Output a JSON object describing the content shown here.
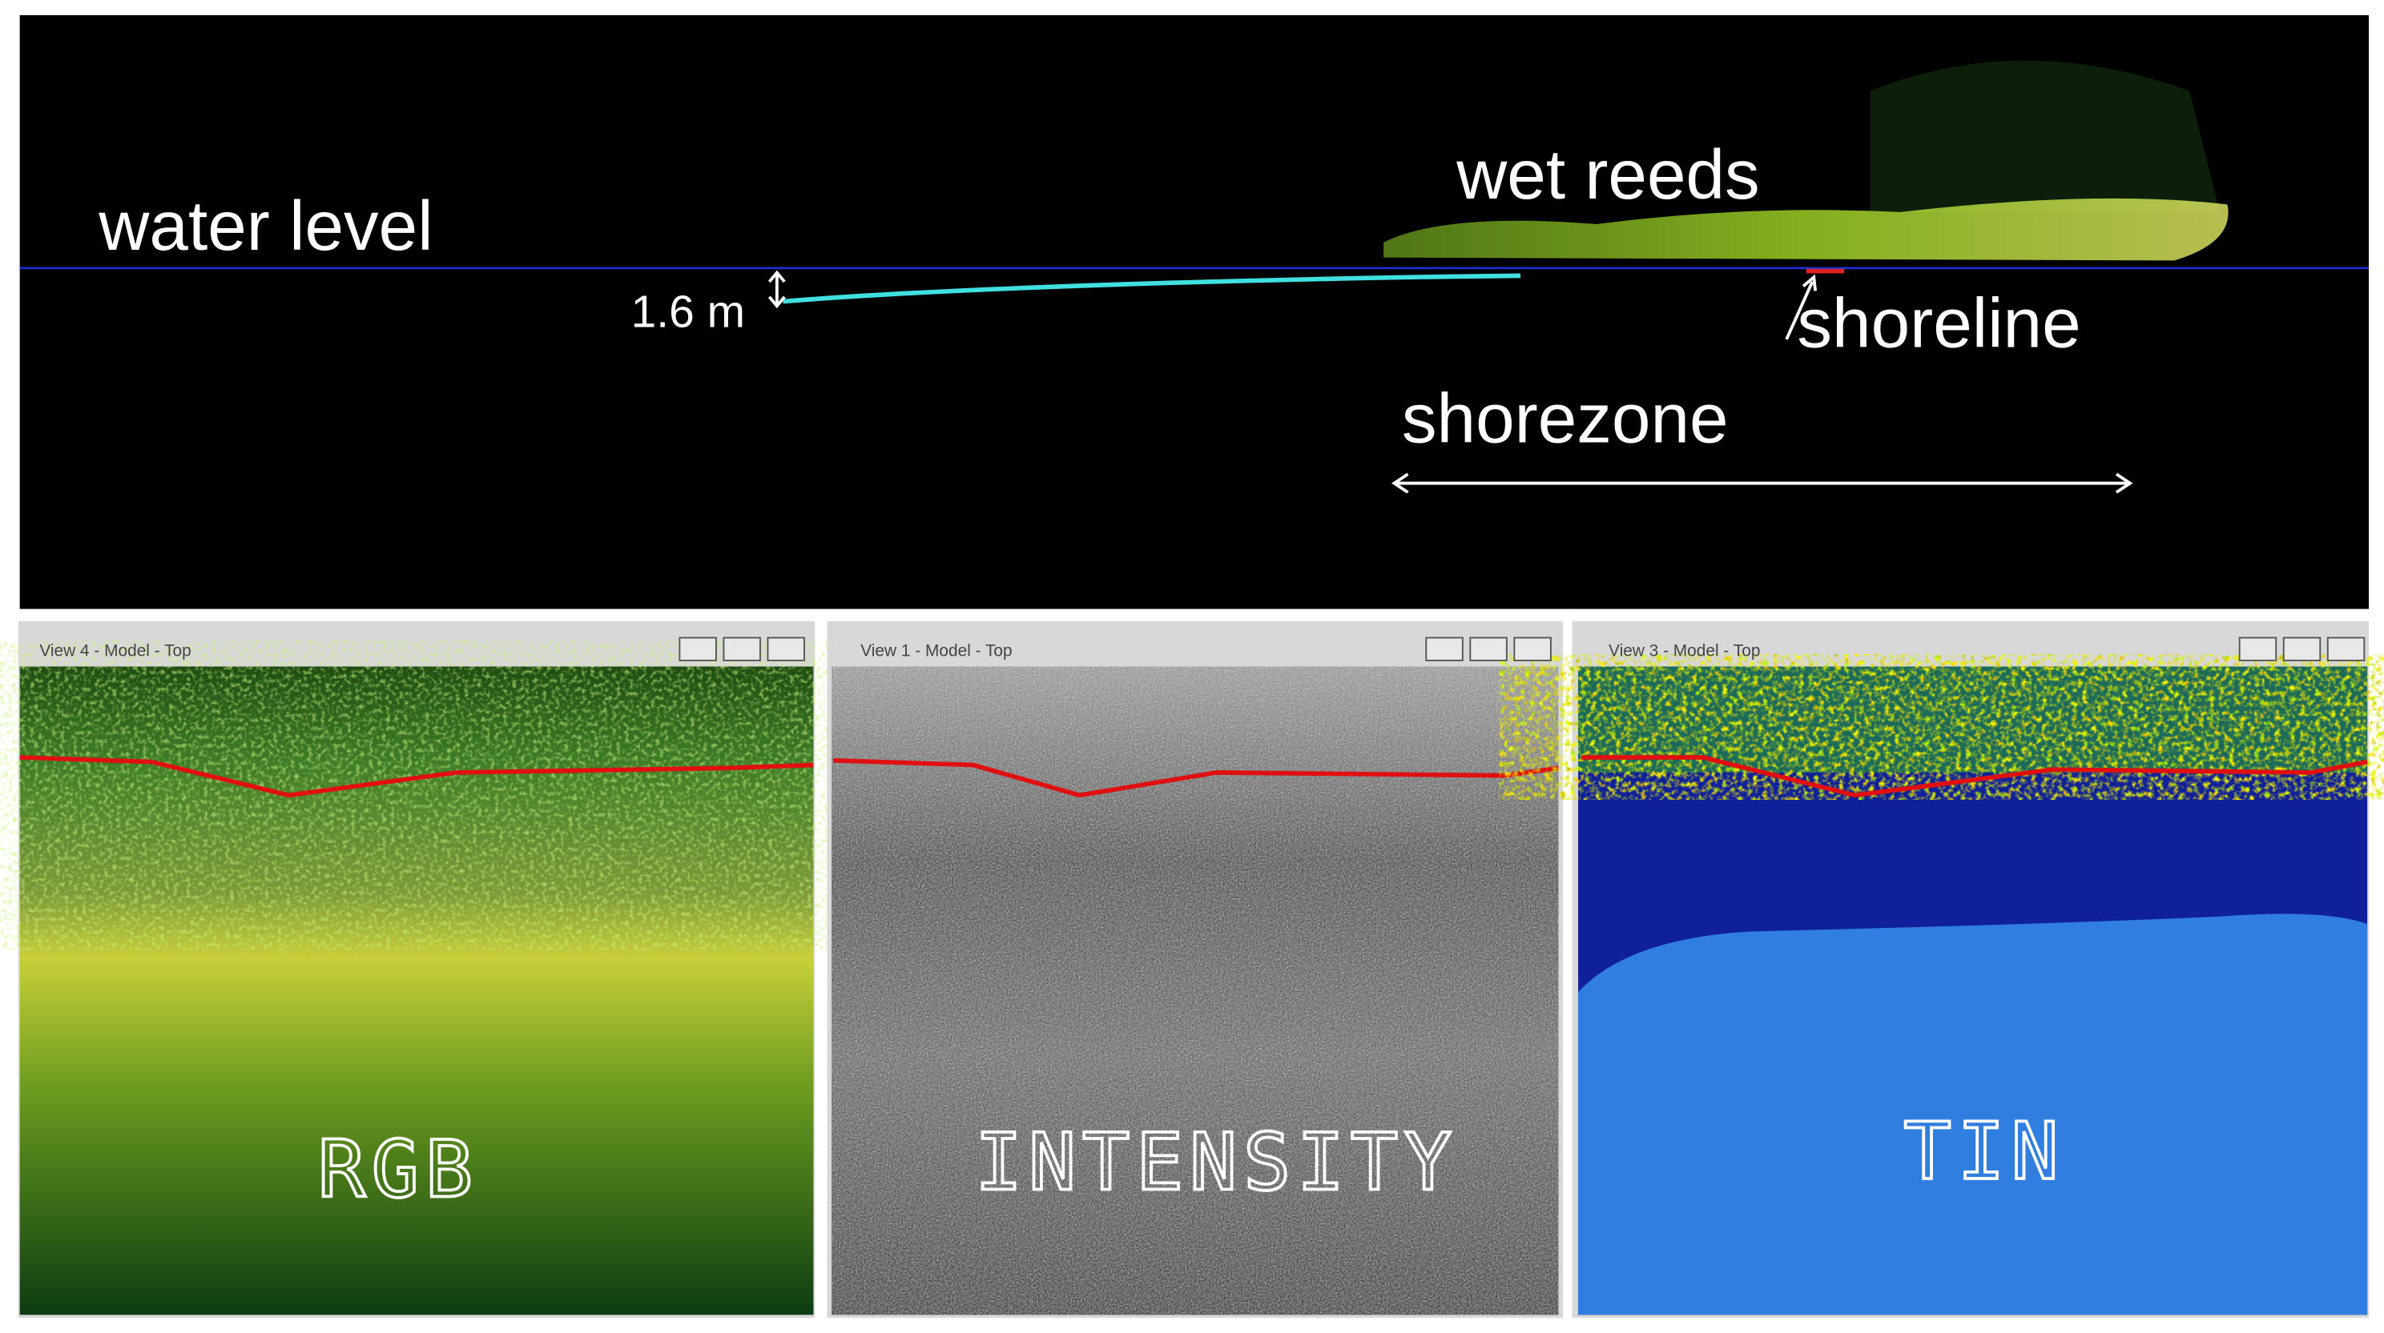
{
  "profile": {
    "water_level": "water level",
    "wet_reeds": "wet reeds",
    "depth": "1.6 m",
    "shoreline": "shoreline",
    "shorezone": "shorezone"
  },
  "views": [
    {
      "title": "View 4 - Model - Top",
      "label": "RGB"
    },
    {
      "title": "View 1 - Model - Top",
      "label": "INTENSITY"
    },
    {
      "title": "View 3 - Model - Top",
      "label": "TIN"
    }
  ]
}
